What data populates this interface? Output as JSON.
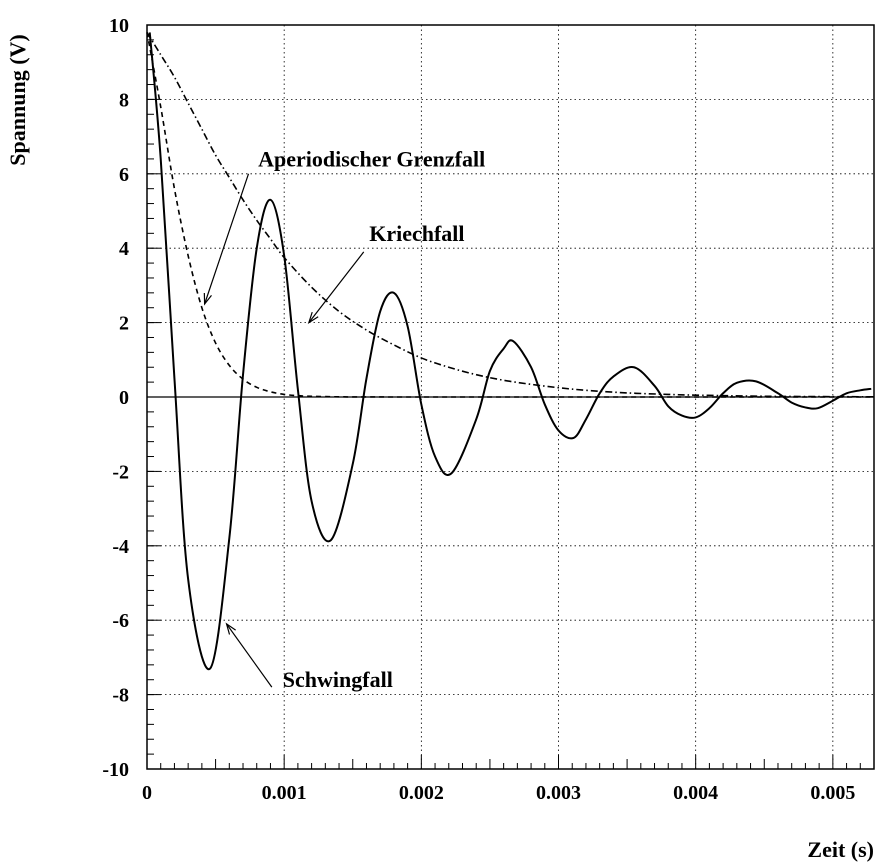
{
  "chart_data": {
    "type": "line",
    "title": "",
    "xlabel": "Zeit (s)",
    "ylabel": "Spannung (V)",
    "xlim": [
      0,
      0.0053
    ],
    "ylim": [
      -10,
      10
    ],
    "grid": true,
    "x_ticks": [
      0,
      0.001,
      0.002,
      0.003,
      0.004,
      0.005
    ],
    "x_tick_labels": [
      "0",
      "0.001",
      "0.002",
      "0.003",
      "0.004",
      "0.005"
    ],
    "y_ticks": [
      -10,
      -8,
      -6,
      -4,
      -2,
      0,
      2,
      4,
      6,
      8,
      10
    ],
    "y_tick_labels": [
      "-10",
      "-8",
      "-6",
      "-4",
      "-2",
      "0",
      "2",
      "4",
      "6",
      "8",
      "10"
    ],
    "series": [
      {
        "name": "Schwingfall",
        "style": "solid",
        "x": [
          2e-05,
          0.0001,
          0.0002,
          0.0003,
          0.00046,
          0.0006,
          0.0007,
          0.0008,
          0.0009,
          0.001,
          0.0011,
          0.0012,
          0.00134,
          0.0015,
          0.0016,
          0.0017,
          0.0018,
          0.0019,
          0.002,
          0.0021,
          0.00222,
          0.0024,
          0.0025,
          0.0026,
          0.00267,
          0.0028,
          0.0029,
          0.003,
          0.00311,
          0.0032,
          0.0033,
          0.0034,
          0.00355,
          0.0037,
          0.0038,
          0.0039,
          0.004,
          0.0041,
          0.0042,
          0.0043,
          0.00444,
          0.0046,
          0.0047,
          0.0048,
          0.00489,
          0.005,
          0.0051,
          0.0052,
          0.00528
        ],
        "y": [
          9.8,
          6.4,
          0.5,
          -4.9,
          -7.3,
          -3.8,
          0.6,
          4.0,
          5.3,
          3.8,
          0.2,
          -2.8,
          -3.85,
          -1.8,
          0.5,
          2.3,
          2.8,
          1.9,
          -0.2,
          -1.6,
          -2.05,
          -0.6,
          0.7,
          1.3,
          1.5,
          0.8,
          -0.2,
          -0.9,
          -1.1,
          -0.6,
          0.1,
          0.55,
          0.8,
          0.3,
          -0.25,
          -0.5,
          -0.55,
          -0.3,
          0.1,
          0.38,
          0.42,
          0.1,
          -0.15,
          -0.28,
          -0.3,
          -0.1,
          0.1,
          0.18,
          0.22
        ]
      },
      {
        "name": "Aperiodischer Grenzfall",
        "style": "dashed",
        "x": [
          0,
          0.0001,
          0.0002,
          0.0003,
          0.0004,
          0.0005,
          0.0006,
          0.0007,
          0.0008,
          0.0009,
          0.001,
          0.0011,
          0.0012,
          0.0014,
          0.0016,
          0.002,
          0.003,
          0.004,
          0.005,
          0.0053
        ],
        "y": [
          9.8,
          7.8,
          5.6,
          3.8,
          2.4,
          1.45,
          0.85,
          0.48,
          0.26,
          0.14,
          0.07,
          0.035,
          0.02,
          0.005,
          0.001,
          0,
          0,
          0,
          0,
          0
        ]
      },
      {
        "name": "Kriechfall",
        "style": "dashdot",
        "x": [
          0,
          0.0001,
          0.0002,
          0.0003,
          0.0004,
          0.0005,
          0.0006,
          0.0007,
          0.0008,
          0.0009,
          0.001,
          0.0012,
          0.0014,
          0.0016,
          0.0018,
          0.002,
          0.0022,
          0.0024,
          0.0026,
          0.0028,
          0.003,
          0.0032,
          0.0035,
          0.0038,
          0.004,
          0.0045,
          0.005,
          0.0053
        ],
        "y": [
          9.8,
          9.2,
          8.6,
          7.9,
          7.2,
          6.5,
          5.9,
          5.3,
          4.75,
          4.25,
          3.75,
          2.95,
          2.3,
          1.8,
          1.4,
          1.05,
          0.8,
          0.6,
          0.45,
          0.34,
          0.25,
          0.18,
          0.11,
          0.07,
          0.05,
          0.02,
          0.01,
          0.005
        ]
      }
    ],
    "annotations": [
      {
        "text": "Aperiodischer Grenzfall",
        "label_x": 0.00081,
        "label_y": 6.2,
        "tail_x": 0.00074,
        "tail_y": 6.0,
        "arrow_x": 0.00042,
        "arrow_y": 2.5
      },
      {
        "text": "Kriechfall",
        "label_x": 0.00162,
        "label_y": 4.2,
        "tail_x": 0.00158,
        "tail_y": 3.9,
        "arrow_x": 0.00118,
        "arrow_y": 2.0
      },
      {
        "text": "Schwingfall",
        "label_x": 0.00099,
        "label_y": -7.8,
        "tail_x": 0.00091,
        "tail_y": -7.8,
        "arrow_x": 0.00058,
        "arrow_y": -6.1
      }
    ]
  }
}
